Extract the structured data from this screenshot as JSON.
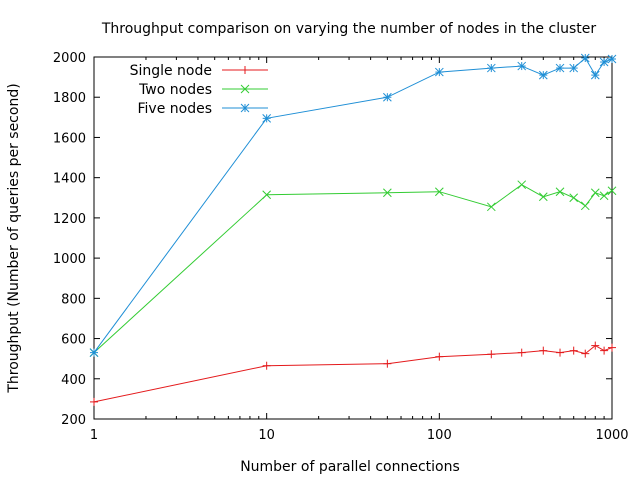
{
  "chart_data": {
    "type": "line",
    "title": "Throughput comparison on varying the number of nodes in the cluster",
    "xlabel": "Number of parallel connections",
    "ylabel": "Throughput (Number of queries per second)",
    "x_scale": "log",
    "xlim": [
      1,
      1000
    ],
    "ylim": [
      200,
      2000
    ],
    "x_ticks": [
      "1",
      "10",
      "100",
      "1000"
    ],
    "y_ticks": [
      "200",
      "400",
      "600",
      "800",
      "1000",
      "1200",
      "1400",
      "1600",
      "1800",
      "2000"
    ],
    "grid": false,
    "legend_position": "top-left",
    "series": [
      {
        "name": "Single node",
        "color": "#e41a1c",
        "marker": "plus",
        "x": [
          1,
          10,
          50,
          100,
          200,
          300,
          400,
          500,
          600,
          700,
          800,
          900,
          1000
        ],
        "y": [
          285,
          465,
          475,
          510,
          522,
          530,
          540,
          530,
          540,
          525,
          565,
          540,
          555
        ]
      },
      {
        "name": "Two nodes",
        "color": "#33cc33",
        "marker": "cross",
        "x": [
          1,
          10,
          50,
          100,
          200,
          300,
          400,
          500,
          600,
          700,
          800,
          900,
          1000
        ],
        "y": [
          530,
          1315,
          1325,
          1330,
          1255,
          1365,
          1305,
          1330,
          1300,
          1260,
          1325,
          1310,
          1335
        ]
      },
      {
        "name": "Five nodes",
        "color": "#1f8fd6",
        "marker": "star",
        "x": [
          1,
          10,
          50,
          100,
          200,
          300,
          400,
          500,
          600,
          700,
          800,
          900,
          1000
        ],
        "y": [
          530,
          1695,
          1800,
          1925,
          1945,
          1955,
          1910,
          1945,
          1945,
          1995,
          1910,
          1975,
          1990
        ]
      }
    ]
  }
}
